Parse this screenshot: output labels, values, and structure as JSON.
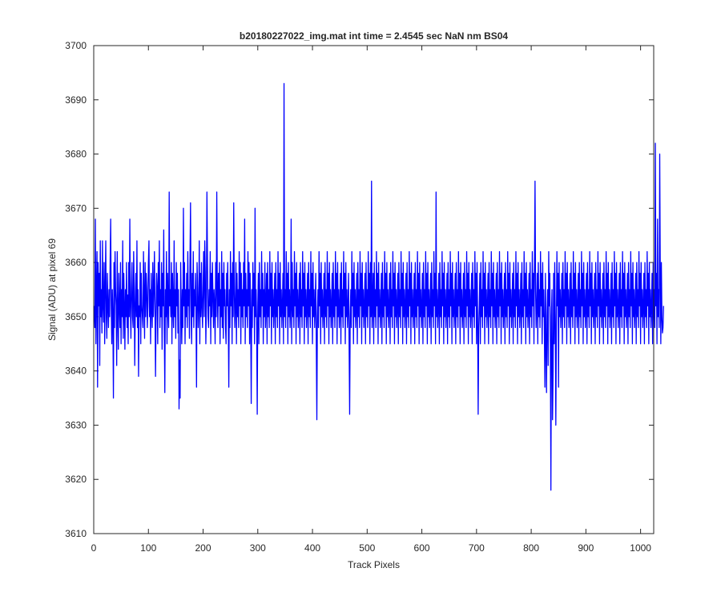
{
  "chart_data": {
    "type": "line",
    "title": "b20180227022_img.mat int time = 2.4545 sec  NaN nm BS04",
    "xlabel": "Track Pixels",
    "ylabel": "Signal (ADU) at pixel 69",
    "xlim": [
      0,
      1024
    ],
    "ylim": [
      3610,
      3700
    ],
    "xticks": [
      0,
      100,
      200,
      300,
      400,
      500,
      600,
      700,
      800,
      900,
      1000
    ],
    "yticks": [
      3610,
      3620,
      3630,
      3640,
      3650,
      3660,
      3670,
      3680,
      3690,
      3700
    ],
    "grid": false,
    "legend": "none",
    "series": [
      {
        "color": "#0000ff",
        "x_start": 1,
        "x_step": 1,
        "y": [
          3652,
          3648,
          3668,
          3645,
          3655,
          3662,
          3637,
          3660,
          3652,
          3658,
          3641,
          3664,
          3650,
          3655,
          3647,
          3664,
          3652,
          3649,
          3660,
          3645,
          3655,
          3664,
          3650,
          3646,
          3658,
          3652,
          3648,
          3655,
          3650,
          3660,
          3668,
          3652,
          3645,
          3655,
          3650,
          3635,
          3660,
          3648,
          3662,
          3655,
          3652,
          3641,
          3662,
          3650,
          3644,
          3658,
          3652,
          3648,
          3660,
          3645,
          3655,
          3650,
          3664,
          3646,
          3658,
          3652,
          3644,
          3655,
          3650,
          3660,
          3648,
          3654,
          3645,
          3660,
          3650,
          3668,
          3652,
          3646,
          3655,
          3660,
          3650,
          3648,
          3662,
          3655,
          3641,
          3652,
          3658,
          3650,
          3664,
          3648,
          3655,
          3639,
          3652,
          3650,
          3660,
          3645,
          3658,
          3652,
          3650,
          3648,
          3662,
          3654,
          3646,
          3660,
          3650,
          3658,
          3655,
          3648,
          3652,
          3660,
          3664,
          3650,
          3655,
          3645,
          3658,
          3652,
          3648,
          3660,
          3650,
          3655,
          3662,
          3652,
          3639,
          3650,
          3658,
          3655,
          3645,
          3660,
          3652,
          3664,
          3648,
          3655,
          3650,
          3660,
          3644,
          3658,
          3652,
          3666,
          3648,
          3636,
          3655,
          3650,
          3662,
          3645,
          3658,
          3652,
          3648,
          3673,
          3652,
          3655,
          3650,
          3660,
          3645,
          3658,
          3652,
          3648,
          3664,
          3650,
          3655,
          3646,
          3660,
          3652,
          3658,
          3647,
          3655,
          3633,
          3642,
          3635,
          3660,
          3652,
          3645,
          3655,
          3648,
          3670,
          3652,
          3660,
          3645,
          3655,
          3650,
          3658,
          3648,
          3662,
          3652,
          3655,
          3646,
          3660,
          3671,
          3652,
          3645,
          3658,
          3650,
          3662,
          3648,
          3655,
          3652,
          3658,
          3650,
          3637,
          3660,
          3655,
          3648,
          3652,
          3664,
          3645,
          3658,
          3650,
          3660,
          3652,
          3648,
          3655,
          3662,
          3650,
          3664,
          3658,
          3645,
          3652,
          3673,
          3660,
          3650,
          3648,
          3655,
          3652,
          3662,
          3645,
          3658,
          3650,
          3660,
          3654,
          3648,
          3655,
          3652,
          3645,
          3660,
          3650,
          3673,
          3655,
          3648,
          3658,
          3652,
          3660,
          3645,
          3655,
          3650,
          3662,
          3648,
          3658,
          3646,
          3660,
          3652,
          3655,
          3648,
          3645,
          3658,
          3652,
          3660,
          3650,
          3637,
          3655,
          3648,
          3662,
          3652,
          3658,
          3645,
          3660,
          3650,
          3671,
          3655,
          3648,
          3652,
          3660,
          3645,
          3658,
          3650,
          3655,
          3648,
          3662,
          3652,
          3660,
          3645,
          3658,
          3650,
          3655,
          3648,
          3660,
          3652,
          3668,
          3645,
          3658,
          3650,
          3655,
          3648,
          3662,
          3652,
          3660,
          3645,
          3658,
          3650,
          3634,
          3655,
          3648,
          3660,
          3652,
          3658,
          3645,
          3670,
          3650,
          3655,
          3648,
          3632,
          3652,
          3658,
          3645,
          3660,
          3650,
          3655,
          3648,
          3662,
          3652,
          3658,
          3645,
          3655,
          3650,
          3660,
          3648,
          3652,
          3658,
          3645,
          3660,
          3650,
          3655,
          3648,
          3662,
          3652,
          3658,
          3645,
          3660,
          3650,
          3655,
          3648,
          3652,
          3658,
          3645,
          3660,
          3650,
          3655,
          3648,
          3662,
          3652,
          3658,
          3645,
          3660,
          3650,
          3655,
          3648,
          3652,
          3658,
          3645,
          3693,
          3650,
          3655,
          3648,
          3662,
          3652,
          3658,
          3645,
          3660,
          3650,
          3655,
          3648,
          3652,
          3668,
          3645,
          3660,
          3650,
          3655,
          3648,
          3662,
          3652,
          3658,
          3645,
          3660,
          3650,
          3655,
          3648,
          3652,
          3658,
          3645,
          3660,
          3650,
          3655,
          3648,
          3662,
          3652,
          3658,
          3645,
          3660,
          3650,
          3655,
          3648,
          3652,
          3658,
          3645,
          3660,
          3650,
          3655,
          3648,
          3662,
          3652,
          3658,
          3645,
          3660,
          3650,
          3655,
          3648,
          3652,
          3658,
          3645,
          3631,
          3650,
          3655,
          3648,
          3662,
          3652,
          3658,
          3645,
          3660,
          3650,
          3655,
          3648,
          3652,
          3658,
          3645,
          3660,
          3650,
          3655,
          3648,
          3662,
          3652,
          3658,
          3645,
          3660,
          3650,
          3655,
          3648,
          3652,
          3658,
          3645,
          3660,
          3650,
          3655,
          3648,
          3662,
          3652,
          3658,
          3645,
          3660,
          3650,
          3655,
          3648,
          3652,
          3658,
          3645,
          3660,
          3650,
          3655,
          3648,
          3662,
          3652,
          3658,
          3645,
          3660,
          3650,
          3655,
          3648,
          3652,
          3658,
          3645,
          3632,
          3650,
          3655,
          3648,
          3662,
          3652,
          3658,
          3645,
          3660,
          3650,
          3655,
          3648,
          3652,
          3658,
          3645,
          3660,
          3650,
          3655,
          3648,
          3662,
          3652,
          3658,
          3645,
          3660,
          3650,
          3655,
          3648,
          3652,
          3658,
          3645,
          3660,
          3650,
          3655,
          3648,
          3662,
          3652,
          3658,
          3645,
          3660,
          3650,
          3675,
          3648,
          3652,
          3658,
          3645,
          3660,
          3650,
          3655,
          3648,
          3662,
          3652,
          3658,
          3645,
          3660,
          3650,
          3655,
          3648,
          3652,
          3658,
          3645,
          3660,
          3650,
          3655,
          3648,
          3662,
          3652,
          3658,
          3645,
          3660,
          3650,
          3655,
          3648,
          3652,
          3658,
          3645,
          3660,
          3650,
          3655,
          3648,
          3662,
          3652,
          3658,
          3645,
          3660,
          3650,
          3655,
          3648,
          3652,
          3658,
          3645,
          3660,
          3650,
          3655,
          3648,
          3662,
          3652,
          3658,
          3645,
          3660,
          3650,
          3655,
          3648,
          3652,
          3658,
          3645,
          3660,
          3650,
          3655,
          3648,
          3662,
          3652,
          3658,
          3645,
          3660,
          3650,
          3655,
          3648,
          3652,
          3658,
          3645,
          3660,
          3650,
          3655,
          3648,
          3662,
          3652,
          3658,
          3645,
          3660,
          3650,
          3655,
          3648,
          3652,
          3658,
          3645,
          3660,
          3650,
          3655,
          3648,
          3662,
          3652,
          3658,
          3645,
          3660,
          3650,
          3655,
          3648,
          3652,
          3658,
          3645,
          3660,
          3650,
          3655,
          3648,
          3662,
          3652,
          3658,
          3645,
          3673,
          3650,
          3655,
          3648,
          3652,
          3658,
          3645,
          3660,
          3650,
          3655,
          3648,
          3662,
          3652,
          3658,
          3645,
          3660,
          3650,
          3655,
          3648,
          3652,
          3658,
          3645,
          3660,
          3650,
          3655,
          3648,
          3662,
          3652,
          3658,
          3645,
          3660,
          3650,
          3655,
          3648,
          3652,
          3658,
          3645,
          3660,
          3650,
          3655,
          3648,
          3662,
          3652,
          3658,
          3645,
          3660,
          3650,
          3655,
          3648,
          3652,
          3658,
          3645,
          3660,
          3650,
          3655,
          3648,
          3662,
          3652,
          3658,
          3645,
          3660,
          3650,
          3655,
          3648,
          3652,
          3658,
          3645,
          3660,
          3650,
          3655,
          3648,
          3662,
          3652,
          3658,
          3645,
          3660,
          3650,
          3632,
          3648,
          3652,
          3658,
          3645,
          3660,
          3650,
          3655,
          3648,
          3662,
          3652,
          3658,
          3645,
          3660,
          3650,
          3655,
          3648,
          3652,
          3658,
          3645,
          3660,
          3650,
          3655,
          3648,
          3662,
          3652,
          3658,
          3645,
          3660,
          3650,
          3655,
          3648,
          3652,
          3658,
          3645,
          3660,
          3650,
          3655,
          3648,
          3662,
          3652,
          3658,
          3645,
          3660,
          3650,
          3655,
          3648,
          3652,
          3658,
          3645,
          3660,
          3650,
          3655,
          3648,
          3662,
          3652,
          3658,
          3645,
          3660,
          3650,
          3655,
          3648,
          3652,
          3658,
          3645,
          3660,
          3650,
          3655,
          3648,
          3662,
          3652,
          3658,
          3645,
          3660,
          3650,
          3655,
          3648,
          3652,
          3658,
          3645,
          3660,
          3650,
          3655,
          3648,
          3662,
          3652,
          3658,
          3645,
          3660,
          3650,
          3655,
          3648,
          3652,
          3658,
          3645,
          3660,
          3650,
          3655,
          3648,
          3662,
          3652,
          3658,
          3645,
          3660,
          3675,
          3655,
          3648,
          3652,
          3658,
          3645,
          3660,
          3650,
          3655,
          3648,
          3662,
          3652,
          3658,
          3645,
          3660,
          3650,
          3655,
          3648,
          3637,
          3658,
          3645,
          3636,
          3650,
          3655,
          3641,
          3662,
          3652,
          3658,
          3645,
          3618,
          3650,
          3655,
          3631,
          3640,
          3658,
          3645,
          3660,
          3650,
          3630,
          3648,
          3662,
          3652,
          3658,
          3637,
          3660,
          3650,
          3655,
          3648,
          3652,
          3658,
          3645,
          3660,
          3650,
          3655,
          3648,
          3662,
          3652,
          3658,
          3645,
          3660,
          3650,
          3655,
          3648,
          3652,
          3658,
          3645,
          3660,
          3650,
          3655,
          3648,
          3662,
          3652,
          3658,
          3645,
          3660,
          3650,
          3655,
          3648,
          3652,
          3658,
          3645,
          3660,
          3650,
          3655,
          3648,
          3662,
          3652,
          3658,
          3645,
          3660,
          3650,
          3655,
          3648,
          3652,
          3658,
          3645,
          3660,
          3650,
          3655,
          3648,
          3662,
          3652,
          3658,
          3645,
          3660,
          3650,
          3655,
          3648,
          3652,
          3658,
          3645,
          3660,
          3650,
          3655,
          3648,
          3662,
          3652,
          3658,
          3645,
          3660,
          3650,
          3655,
          3648,
          3652,
          3658,
          3645,
          3660,
          3650,
          3655,
          3648,
          3662,
          3652,
          3658,
          3645,
          3660,
          3650,
          3655,
          3648,
          3652,
          3658,
          3645,
          3660,
          3650,
          3655,
          3648,
          3662,
          3652,
          3658,
          3645,
          3660,
          3650,
          3655,
          3648,
          3652,
          3658,
          3645,
          3660,
          3650,
          3655,
          3648,
          3662,
          3652,
          3658,
          3645,
          3660,
          3650,
          3655,
          3648,
          3652,
          3658,
          3645,
          3660,
          3650,
          3655,
          3648,
          3662,
          3652,
          3658,
          3645,
          3660,
          3650,
          3655,
          3648,
          3652,
          3658,
          3645,
          3660,
          3650,
          3655,
          3648,
          3662,
          3652,
          3658,
          3645,
          3660,
          3650,
          3655,
          3648,
          3652,
          3658,
          3645,
          3660,
          3650,
          3655,
          3648,
          3662,
          3652,
          3658,
          3645,
          3660,
          3650,
          3655,
          3648,
          3652,
          3658,
          3645,
          3660,
          3650,
          3655,
          3648,
          3682,
          3652,
          3658,
          3645,
          3668,
          3650,
          3655,
          3648,
          3680,
          3658,
          3645,
          3660,
          3650,
          3647,
          3648,
          3652
        ]
      }
    ]
  }
}
